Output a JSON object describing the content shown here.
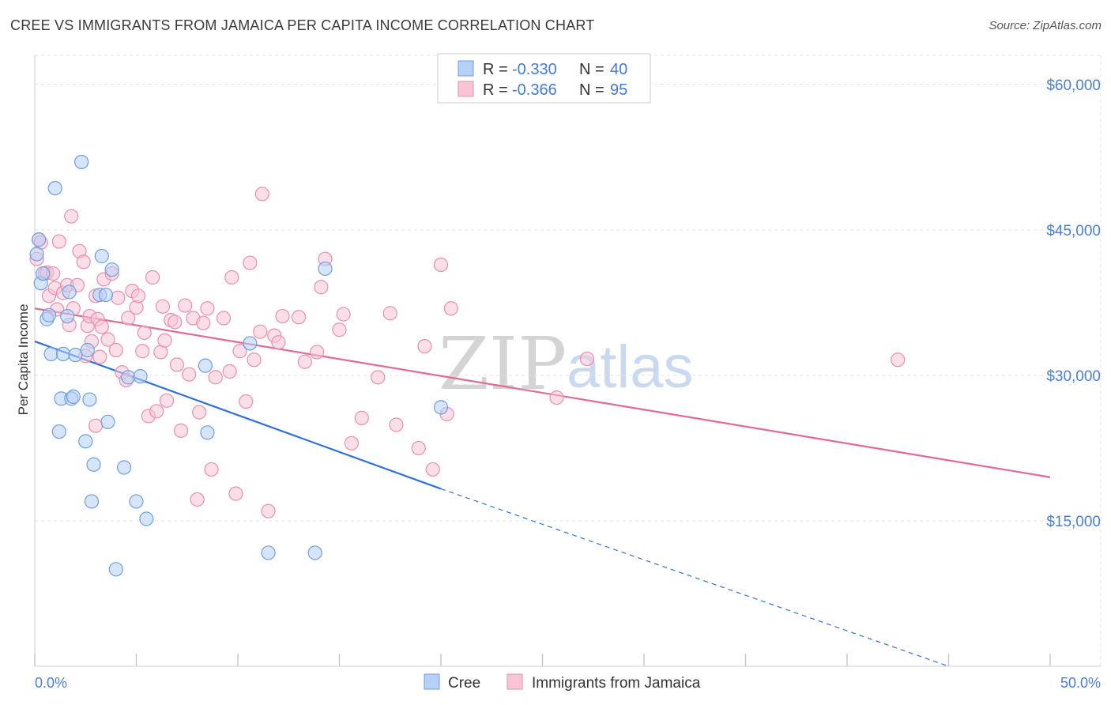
{
  "title": "CREE VS IMMIGRANTS FROM JAMAICA PER CAPITA INCOME CORRELATION CHART",
  "source": "Source: ZipAtlas.com",
  "watermark": {
    "zip": "ZIP",
    "atlas": "atlas"
  },
  "legend": {
    "r_label": "R =",
    "n_label": "N =",
    "rows": [
      {
        "r": "-0.330",
        "n": "40"
      },
      {
        "r": "-0.366",
        "n": "95"
      }
    ]
  },
  "bottom_legend": [
    "Cree",
    "Immigrants from Jamaica"
  ],
  "colors": {
    "cree_fill": "#b7d0f5",
    "cree_stroke": "#6e9fe0",
    "cree_line": "#2f73d6",
    "jam_fill": "#f8c5d6",
    "jam_stroke": "#e98fac",
    "jam_line": "#e06b98",
    "axis_text": "#4a7fd4",
    "grid": "#e2e2e2"
  },
  "chart_data": {
    "type": "scatter",
    "title": "CREE VS IMMIGRANTS FROM JAMAICA PER CAPITA INCOME CORRELATION CHART",
    "xlabel": "",
    "ylabel": "Per Capita Income",
    "xlim": [
      0,
      50
    ],
    "ylim": [
      0,
      63000
    ],
    "x_tick_labels": [
      "0.0%",
      "50.0%"
    ],
    "y_ticks": [
      15000,
      30000,
      45000,
      60000
    ],
    "y_tick_labels": [
      "$15,000",
      "$30,000",
      "$45,000",
      "$60,000"
    ],
    "grid": true,
    "legend_position": "top-center",
    "series": [
      {
        "name": "Cree",
        "r": -0.33,
        "n": 40,
        "points": [
          [
            0.2,
            44000
          ],
          [
            0.3,
            39500
          ],
          [
            0.4,
            40500
          ],
          [
            0.6,
            35800
          ],
          [
            0.7,
            36200
          ],
          [
            1.0,
            49300
          ],
          [
            0.8,
            32200
          ],
          [
            1.2,
            24200
          ],
          [
            1.3,
            27600
          ],
          [
            1.4,
            32200
          ],
          [
            1.6,
            36100
          ],
          [
            1.7,
            38600
          ],
          [
            1.8,
            27600
          ],
          [
            1.9,
            27800
          ],
          [
            2.0,
            32100
          ],
          [
            2.3,
            52000
          ],
          [
            2.5,
            23200
          ],
          [
            2.6,
            32600
          ],
          [
            2.7,
            27500
          ],
          [
            2.8,
            17000
          ],
          [
            2.9,
            20800
          ],
          [
            3.2,
            38300
          ],
          [
            3.3,
            42300
          ],
          [
            3.5,
            38300
          ],
          [
            3.6,
            25200
          ],
          [
            3.8,
            40900
          ],
          [
            4.0,
            10000
          ],
          [
            4.4,
            20500
          ],
          [
            4.6,
            29800
          ],
          [
            5.0,
            17000
          ],
          [
            5.2,
            29900
          ],
          [
            5.5,
            15200
          ],
          [
            8.4,
            31000
          ],
          [
            8.5,
            24100
          ],
          [
            10.6,
            33300
          ],
          [
            11.5,
            11700
          ],
          [
            13.8,
            11700
          ],
          [
            14.3,
            41000
          ],
          [
            20.0,
            26700
          ],
          [
            0.1,
            42500
          ]
        ]
      },
      {
        "name": "Immigrants from Jamaica",
        "r": -0.366,
        "n": 95,
        "points": [
          [
            0.1,
            42000
          ],
          [
            0.2,
            44000
          ],
          [
            0.3,
            43700
          ],
          [
            0.5,
            40500
          ],
          [
            0.6,
            40600
          ],
          [
            0.7,
            38200
          ],
          [
            0.9,
            40500
          ],
          [
            1.0,
            39000
          ],
          [
            1.1,
            36800
          ],
          [
            1.2,
            43800
          ],
          [
            1.4,
            38500
          ],
          [
            1.6,
            39300
          ],
          [
            1.7,
            35200
          ],
          [
            1.8,
            46400
          ],
          [
            1.9,
            36900
          ],
          [
            2.1,
            39300
          ],
          [
            2.2,
            42800
          ],
          [
            2.4,
            41700
          ],
          [
            2.5,
            32000
          ],
          [
            2.6,
            35100
          ],
          [
            2.7,
            36100
          ],
          [
            2.8,
            33500
          ],
          [
            3.0,
            38200
          ],
          [
            3.1,
            35800
          ],
          [
            3.2,
            31900
          ],
          [
            3.3,
            35000
          ],
          [
            3.4,
            39900
          ],
          [
            3.6,
            33700
          ],
          [
            3.8,
            40500
          ],
          [
            4.0,
            32600
          ],
          [
            4.1,
            38000
          ],
          [
            4.3,
            30300
          ],
          [
            4.5,
            29500
          ],
          [
            4.6,
            35900
          ],
          [
            4.8,
            38700
          ],
          [
            5.0,
            37000
          ],
          [
            5.1,
            38200
          ],
          [
            5.3,
            32500
          ],
          [
            5.4,
            34400
          ],
          [
            5.6,
            25800
          ],
          [
            5.8,
            40100
          ],
          [
            6.0,
            26300
          ],
          [
            6.2,
            32400
          ],
          [
            6.3,
            37100
          ],
          [
            6.4,
            33600
          ],
          [
            6.5,
            27400
          ],
          [
            6.7,
            35700
          ],
          [
            6.9,
            35500
          ],
          [
            7.0,
            31100
          ],
          [
            7.2,
            24300
          ],
          [
            7.4,
            37200
          ],
          [
            7.6,
            30100
          ],
          [
            7.8,
            35900
          ],
          [
            8.0,
            17200
          ],
          [
            8.1,
            26200
          ],
          [
            8.3,
            35400
          ],
          [
            8.5,
            36900
          ],
          [
            8.7,
            20300
          ],
          [
            8.9,
            29800
          ],
          [
            9.3,
            35900
          ],
          [
            9.6,
            30400
          ],
          [
            9.7,
            40100
          ],
          [
            9.9,
            17800
          ],
          [
            10.1,
            32500
          ],
          [
            10.4,
            27300
          ],
          [
            10.6,
            41600
          ],
          [
            10.8,
            31600
          ],
          [
            11.1,
            34500
          ],
          [
            11.2,
            48700
          ],
          [
            11.5,
            16000
          ],
          [
            11.8,
            34100
          ],
          [
            12.0,
            33400
          ],
          [
            12.2,
            36100
          ],
          [
            13.3,
            31400
          ],
          [
            13.9,
            32400
          ],
          [
            14.1,
            39100
          ],
          [
            14.3,
            42000
          ],
          [
            15.0,
            34700
          ],
          [
            15.2,
            36300
          ],
          [
            15.6,
            23000
          ],
          [
            16.1,
            25600
          ],
          [
            16.9,
            29800
          ],
          [
            17.5,
            36400
          ],
          [
            17.8,
            24900
          ],
          [
            18.9,
            22500
          ],
          [
            19.2,
            33000
          ],
          [
            19.6,
            20300
          ],
          [
            20.0,
            41400
          ],
          [
            20.3,
            26000
          ],
          [
            20.5,
            36900
          ],
          [
            25.7,
            27700
          ],
          [
            27.2,
            31700
          ],
          [
            42.5,
            31600
          ],
          [
            13.0,
            36000
          ],
          [
            3.0,
            24800
          ]
        ]
      }
    ],
    "trendlines": [
      {
        "series": "Cree",
        "x_start": 0,
        "y_start": 33500,
        "x_solid_end": 20,
        "y_solid_end": 18300,
        "x_dash_end": 45,
        "y_dash_end": 0
      },
      {
        "series": "Immigrants from Jamaica",
        "x_start": 0,
        "y_start": 36900,
        "x_end": 50,
        "y_end": 19500
      }
    ]
  }
}
